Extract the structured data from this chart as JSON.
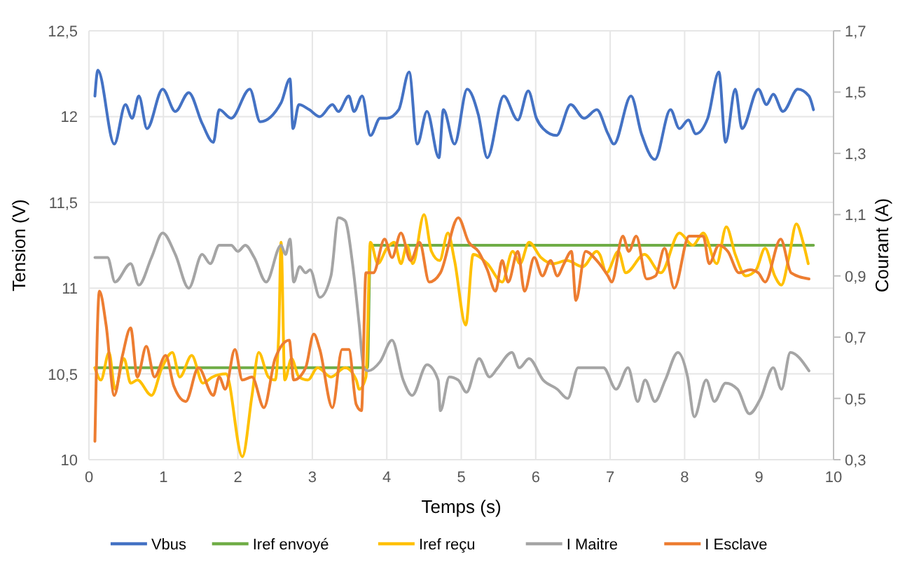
{
  "chart_data": {
    "type": "line",
    "xlabel": "Temps (s)",
    "ylabel": "Tension (V)",
    "y2label": "Courant (A)",
    "xlim": [
      0,
      10
    ],
    "xticks": [
      0,
      1,
      2,
      3,
      4,
      5,
      6,
      7,
      8,
      9,
      10
    ],
    "ylim": [
      10,
      12.5
    ],
    "yticks": [
      10,
      {
        "value": 10.5,
        "label": "10,5"
      },
      11,
      {
        "value": 11.5,
        "label": "11,5"
      },
      12,
      {
        "value": 12.5,
        "label": "12,5"
      }
    ],
    "y2lim": [
      0.3,
      1.7
    ],
    "y2ticks": [
      {
        "value": 0.3,
        "label": "0,3"
      },
      {
        "value": 0.5,
        "label": "0,5"
      },
      {
        "value": 0.7,
        "label": "0,7"
      },
      {
        "value": 0.9,
        "label": "0,9"
      },
      {
        "value": 1.1,
        "label": "1,1"
      },
      {
        "value": 1.3,
        "label": "1,3"
      },
      {
        "value": 1.5,
        "label": "1,5"
      },
      {
        "value": 1.7,
        "label": "1,7"
      }
    ],
    "grid": true,
    "legend": "bottom",
    "marker": "none",
    "line_style": "solid",
    "series": [
      {
        "name": "Vbus",
        "color": "#4472c4",
        "x": [
          0.08,
          0.12,
          0.34,
          0.49,
          0.58,
          0.67,
          0.78,
          0.99,
          1.16,
          1.34,
          1.52,
          1.67,
          1.75,
          1.91,
          2.16,
          2.3,
          2.58,
          2.7,
          2.74,
          2.82,
          2.96,
          3.1,
          3.27,
          3.35,
          3.49,
          3.56,
          3.67,
          3.78,
          3.91,
          4.0,
          4.16,
          4.3,
          4.41,
          4.54,
          4.7,
          4.76,
          4.91,
          5.08,
          5.23,
          5.35,
          5.57,
          5.76,
          5.9,
          6.01,
          6.1,
          6.28,
          6.47,
          6.65,
          6.82,
          6.97,
          7.05,
          7.28,
          7.42,
          7.6,
          7.81,
          7.93,
          8.05,
          8.15,
          8.31,
          8.46,
          8.55,
          8.68,
          8.77,
          8.99,
          9.1,
          9.19,
          9.32,
          9.52,
          9.67,
          9.73
        ],
        "values": [
          12.12,
          12.27,
          11.84,
          12.07,
          11.99,
          12.12,
          11.93,
          12.16,
          12.03,
          12.14,
          11.96,
          11.85,
          12.04,
          11.99,
          12.16,
          11.97,
          12.08,
          12.22,
          11.93,
          12.07,
          12.04,
          12.0,
          12.07,
          12.03,
          12.12,
          12.03,
          12.12,
          11.89,
          11.99,
          11.99,
          12.04,
          12.26,
          11.84,
          12.03,
          11.76,
          12.04,
          11.84,
          12.16,
          12.01,
          11.76,
          12.12,
          11.98,
          12.15,
          11.99,
          11.93,
          11.89,
          12.07,
          11.99,
          12.04,
          11.9,
          11.84,
          12.12,
          11.9,
          11.75,
          12.04,
          11.93,
          11.98,
          11.9,
          11.99,
          12.26,
          11.85,
          12.16,
          11.93,
          12.16,
          12.07,
          12.13,
          12.03,
          12.16,
          12.12,
          12.04
        ]
      },
      {
        "name": "Iref envoyé",
        "color": "#70ad47",
        "axis": "y2",
        "x": [
          0.08,
          3.74,
          3.78,
          9.73
        ],
        "values": [
          0.6,
          0.6,
          1.0,
          1.0
        ]
      },
      {
        "name": "Iref reçu",
        "color": "#ffc000",
        "axis": "y2",
        "x": [
          0.08,
          0.16,
          0.27,
          0.35,
          0.47,
          0.56,
          0.65,
          0.84,
          0.98,
          1.12,
          1.22,
          1.38,
          1.53,
          1.66,
          1.84,
          2.06,
          2.19,
          2.28,
          2.41,
          2.5,
          2.55,
          2.58,
          2.63,
          2.72,
          2.82,
          2.94,
          3.07,
          3.25,
          3.44,
          3.59,
          3.63,
          3.72,
          3.78,
          3.88,
          4.0,
          4.1,
          4.19,
          4.27,
          4.35,
          4.5,
          4.6,
          4.71,
          4.82,
          4.91,
          5.06,
          5.16,
          5.35,
          5.55,
          5.69,
          5.79,
          5.91,
          6.07,
          6.23,
          6.42,
          6.63,
          6.82,
          6.86,
          6.95,
          7.11,
          7.21,
          7.46,
          7.68,
          7.93,
          8.11,
          8.25,
          8.43,
          8.56,
          8.68,
          8.82,
          8.96,
          9.08,
          9.21,
          9.3,
          9.4,
          9.5,
          9.59,
          9.66
        ],
        "values": [
          0.6,
          0.56,
          0.65,
          0.53,
          0.63,
          0.55,
          0.56,
          0.51,
          0.6,
          0.65,
          0.57,
          0.64,
          0.55,
          0.57,
          0.58,
          0.31,
          0.51,
          0.65,
          0.57,
          0.56,
          0.72,
          1.01,
          0.56,
          0.63,
          0.57,
          0.56,
          0.6,
          0.57,
          0.6,
          0.56,
          0.53,
          0.57,
          1.01,
          0.94,
          0.99,
          1.01,
          0.94,
          1.0,
          0.94,
          1.1,
          0.98,
          0.95,
          1.04,
          0.95,
          0.74,
          0.97,
          0.94,
          0.88,
          0.98,
          0.94,
          1.01,
          0.96,
          0.94,
          0.95,
          0.93,
          0.98,
          0.97,
          0.91,
          0.98,
          0.91,
          0.97,
          0.91,
          1.04,
          1.0,
          1.04,
          0.94,
          1.06,
          0.97,
          0.9,
          0.92,
          0.99,
          0.9,
          0.87,
          0.96,
          1.07,
          1.01,
          0.94
        ]
      },
      {
        "name": "I Maitre",
        "color": "#a5a5a5",
        "axis": "y2",
        "x": [
          0.08,
          0.25,
          0.35,
          0.56,
          0.67,
          0.84,
          0.99,
          1.16,
          1.34,
          1.52,
          1.63,
          1.75,
          1.91,
          2.0,
          2.1,
          2.22,
          2.38,
          2.58,
          2.64,
          2.7,
          2.75,
          2.83,
          2.91,
          2.97,
          3.1,
          3.25,
          3.35,
          3.44,
          3.54,
          3.63,
          3.69,
          3.75,
          3.91,
          4.07,
          4.22,
          4.34,
          4.54,
          4.69,
          4.72,
          4.84,
          4.96,
          5.07,
          5.24,
          5.38,
          5.49,
          5.68,
          5.78,
          5.91,
          6.1,
          6.29,
          6.43,
          6.57,
          6.7,
          6.85,
          6.91,
          7.08,
          7.24,
          7.37,
          7.47,
          7.6,
          7.74,
          7.91,
          8.04,
          8.13,
          8.29,
          8.4,
          8.55,
          8.71,
          8.87,
          9.02,
          9.19,
          9.3,
          9.42,
          9.67
        ],
        "values": [
          0.96,
          0.96,
          0.88,
          0.94,
          0.87,
          0.96,
          1.04,
          0.97,
          0.86,
          0.97,
          0.94,
          1.0,
          1.0,
          0.98,
          1.0,
          0.96,
          0.88,
          1.0,
          0.97,
          1.02,
          0.88,
          0.93,
          0.91,
          0.92,
          0.83,
          0.9,
          1.09,
          1.08,
          0.94,
          0.74,
          0.6,
          0.59,
          0.62,
          0.69,
          0.56,
          0.51,
          0.61,
          0.56,
          0.46,
          0.57,
          0.56,
          0.52,
          0.63,
          0.57,
          0.6,
          0.65,
          0.6,
          0.63,
          0.56,
          0.53,
          0.5,
          0.6,
          0.6,
          0.6,
          0.6,
          0.53,
          0.6,
          0.49,
          0.56,
          0.49,
          0.56,
          0.65,
          0.57,
          0.44,
          0.56,
          0.49,
          0.55,
          0.53,
          0.45,
          0.5,
          0.6,
          0.53,
          0.65,
          0.59
        ]
      },
      {
        "name": "I Esclave",
        "color": "#ed7d31",
        "axis": "y2",
        "x": [
          0.08,
          0.14,
          0.23,
          0.34,
          0.45,
          0.56,
          0.65,
          0.77,
          0.88,
          1.03,
          1.14,
          1.3,
          1.47,
          1.67,
          1.75,
          1.83,
          1.96,
          2.06,
          2.19,
          2.35,
          2.5,
          2.69,
          2.75,
          2.91,
          3.02,
          3.1,
          3.27,
          3.4,
          3.49,
          3.59,
          3.66,
          3.72,
          3.82,
          3.97,
          4.07,
          4.19,
          4.32,
          4.44,
          4.57,
          4.72,
          4.96,
          5.1,
          5.23,
          5.35,
          5.46,
          5.55,
          5.63,
          5.76,
          5.85,
          5.98,
          6.09,
          6.2,
          6.29,
          6.38,
          6.48,
          6.54,
          6.67,
          6.82,
          6.97,
          7.02,
          7.17,
          7.25,
          7.35,
          7.49,
          7.61,
          7.73,
          7.86,
          8.06,
          8.25,
          8.33,
          8.46,
          8.58,
          8.73,
          8.88,
          8.99,
          9.08,
          9.29,
          9.43,
          9.67
        ],
        "values": [
          0.36,
          0.85,
          0.74,
          0.51,
          0.64,
          0.73,
          0.57,
          0.67,
          0.57,
          0.64,
          0.54,
          0.49,
          0.6,
          0.51,
          0.57,
          0.53,
          0.66,
          0.56,
          0.57,
          0.47,
          0.63,
          0.69,
          0.56,
          0.6,
          0.71,
          0.66,
          0.47,
          0.66,
          0.66,
          0.48,
          0.46,
          0.91,
          0.91,
          1.02,
          0.96,
          1.04,
          0.95,
          1.01,
          0.88,
          0.91,
          1.09,
          1.01,
          0.98,
          0.92,
          0.85,
          0.95,
          0.88,
          0.98,
          0.85,
          0.96,
          0.9,
          0.95,
          0.9,
          0.94,
          0.98,
          0.82,
          0.98,
          0.95,
          0.9,
          0.88,
          1.03,
          0.98,
          1.03,
          0.89,
          0.9,
          0.99,
          0.86,
          1.03,
          1.03,
          0.94,
          1.0,
          0.98,
          0.91,
          0.92,
          0.91,
          0.88,
          1.02,
          0.91,
          0.89
        ]
      }
    ]
  }
}
